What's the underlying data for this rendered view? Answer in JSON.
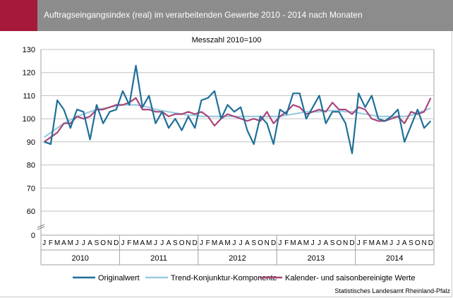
{
  "header": {
    "title": "Auftragseingangsindex (real) im verarbeitenden Gewerbe 2010 - 2014 nach Monaten",
    "accent_color": "#a6193a",
    "bar_color": "#8c8c8c"
  },
  "source": "Statistisches Landesamt Rheinland-Pfalz",
  "chart_data": {
    "type": "line",
    "subtitle": "Messzahl 2010=100",
    "y_ticks": [
      "130",
      "120",
      "110",
      "100",
      "90",
      "80",
      "70",
      "60",
      "0"
    ],
    "ylim": [
      60,
      130
    ],
    "y_axis_break": true,
    "grid": true,
    "legend_position": "bottom",
    "month_labels": [
      "J",
      "F",
      "M",
      "A",
      "M",
      "J",
      "J",
      "A",
      "S",
      "O",
      "N",
      "D"
    ],
    "years": [
      "2010",
      "2011",
      "2012",
      "2013",
      "2014"
    ],
    "series": [
      {
        "name": "Originalwert",
        "color": "#1f6f99",
        "width": 2.2,
        "values": [
          90,
          89,
          108,
          104,
          96,
          104,
          103,
          91,
          106,
          98,
          103,
          104,
          112,
          106,
          123,
          105,
          110,
          98,
          103,
          96,
          100,
          95,
          101,
          96,
          108,
          109,
          112,
          100,
          106,
          103,
          105,
          95,
          89,
          101,
          98,
          89,
          104,
          102,
          111,
          111,
          100,
          105,
          110,
          98,
          103,
          103,
          98,
          85,
          111,
          105,
          110,
          100,
          99,
          101,
          104,
          90,
          97,
          104,
          96,
          99
        ]
      },
      {
        "name": "Trend-Konjunktur-Komponente",
        "color": "#9ccbe0",
        "width": 2.2,
        "values": [
          92,
          94,
          96,
          98,
          99.5,
          101,
          102,
          103,
          104,
          104.5,
          105,
          105.5,
          106,
          106,
          106,
          105.5,
          105,
          104,
          103.5,
          103,
          102.5,
          102,
          101.5,
          101.5,
          101,
          101,
          101,
          101,
          101,
          101,
          101,
          101,
          101,
          101,
          101,
          101,
          101,
          101.5,
          102,
          102.5,
          103,
          103,
          103,
          103.5,
          103.5,
          103.5,
          103,
          103,
          102.5,
          102,
          101.5,
          101,
          101,
          101,
          101,
          101,
          101.5,
          102.5,
          103.5,
          104.5
        ]
      },
      {
        "name": "Kalender- und saisonbereinigte Werte",
        "color": "#a8467a",
        "width": 2.2,
        "values": [
          90,
          92,
          94,
          98,
          98,
          101,
          100,
          101,
          104,
          104,
          105,
          106,
          106,
          107,
          109,
          104,
          104,
          103,
          103,
          101,
          102,
          102,
          103,
          102,
          103,
          101,
          97,
          100,
          102,
          101,
          100,
          99,
          100,
          99,
          103,
          98,
          101,
          103,
          106,
          105,
          102,
          103,
          104,
          103,
          107,
          104,
          104,
          102,
          105,
          104,
          100,
          99,
          99,
          100,
          101,
          98,
          103,
          102,
          103,
          109
        ]
      }
    ]
  }
}
